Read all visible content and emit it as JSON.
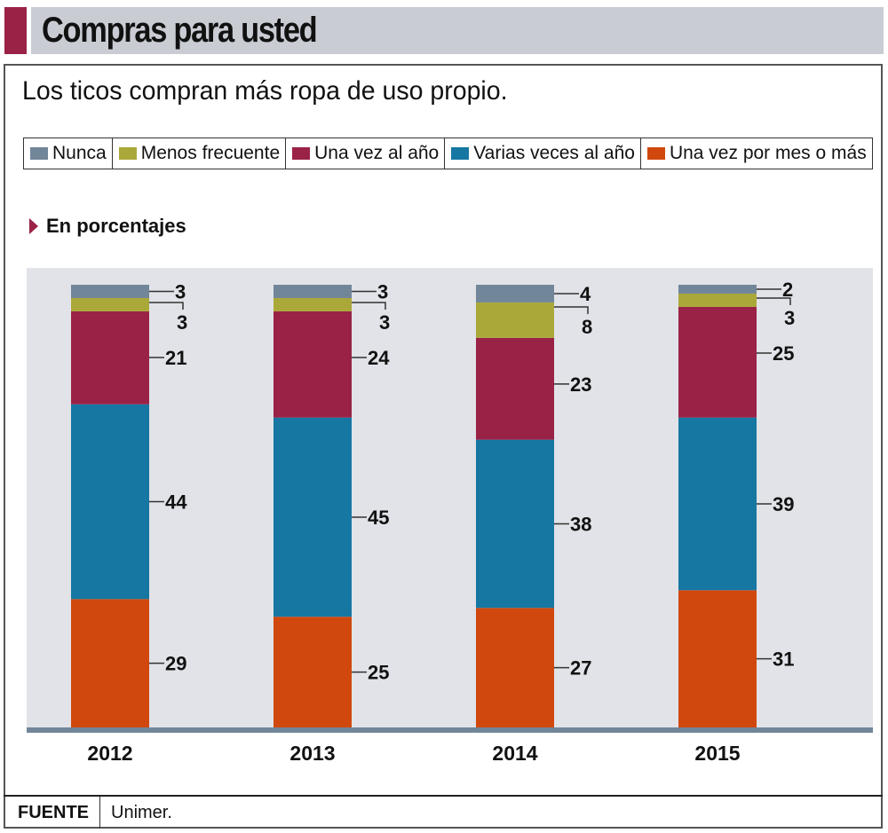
{
  "header": {
    "title": "Compras para usted"
  },
  "subtitle": "Los ticos compran más ropa de uso propio.",
  "unit_label": "En porcentajes",
  "colors": {
    "accent": "#9b2247",
    "plot_bg": "#e1e3e8",
    "baseline": "#72869a"
  },
  "source": {
    "label": "FUENTE",
    "value": "Unimer."
  },
  "chart_data": {
    "type": "bar",
    "stacked": true,
    "title": "Compras para usted",
    "subtitle": "Los ticos compran más ropa de uso propio.",
    "ylabel": "En porcentajes",
    "xlabel": "",
    "ylim": [
      0,
      100
    ],
    "grid": false,
    "legend_position": "top",
    "categories": [
      "2012",
      "2013",
      "2014",
      "2015"
    ],
    "series": [
      {
        "name": "Una vez por mes o más",
        "color": "#d0480d",
        "values": [
          29,
          25,
          27,
          31
        ]
      },
      {
        "name": "Varias veces al año",
        "color": "#1677a3",
        "values": [
          44,
          45,
          38,
          39
        ]
      },
      {
        "name": "Una vez al año",
        "color": "#9b2247",
        "values": [
          21,
          24,
          23,
          25
        ]
      },
      {
        "name": "Menos frecuente",
        "color": "#aba83a",
        "values": [
          3,
          3,
          8,
          3
        ]
      },
      {
        "name": "Nunca",
        "color": "#72869a",
        "values": [
          3,
          3,
          4,
          2
        ]
      }
    ],
    "legend_order": [
      "Nunca",
      "Menos frecuente",
      "Una vez al año",
      "Varias veces al año",
      "Una vez por mes o más"
    ]
  }
}
